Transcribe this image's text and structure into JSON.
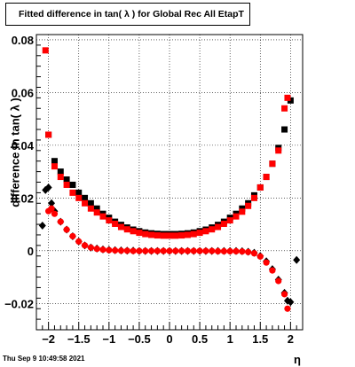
{
  "title": "Fitted difference in tan( λ ) for Global Rec All EtapT",
  "datestamp": "Thu Sep  9 10:49:58 2021",
  "chart_data": {
    "type": "scatter",
    "title": "Fitted difference in tan( λ ) for Global Rec All EtapT",
    "xlabel": "η",
    "ylabel": "difference in tan( λ )",
    "xlim": [
      -2.2,
      2.2
    ],
    "ylim": [
      -0.03,
      0.082
    ],
    "xticks": [
      -2,
      -1.5,
      -1,
      -0.5,
      0,
      0.5,
      1,
      1.5,
      2
    ],
    "xtick_labels": [
      "−2",
      "−1.5",
      "−1",
      "−0.5",
      "0",
      "0.5",
      "1",
      "1.5",
      "2"
    ],
    "yticks": [
      -0.02,
      0,
      0.02,
      0.04,
      0.06,
      0.08
    ],
    "ytick_labels": [
      "−0.02",
      "0",
      "0.02",
      "0.04",
      "0.06",
      "0.08"
    ],
    "grid": true,
    "series": [
      {
        "marker": "square",
        "color": "#000000",
        "x": [
          -2.0,
          -1.9,
          -1.8,
          -1.7,
          -1.6,
          -1.5,
          -1.4,
          -1.3,
          -1.2,
          -1.1,
          -1.0,
          -0.9,
          -0.8,
          -0.7,
          -0.6,
          -0.5,
          -0.4,
          -0.3,
          -0.2,
          -0.1,
          0.0,
          0.1,
          0.2,
          0.3,
          0.4,
          0.5,
          0.6,
          0.7,
          0.8,
          0.9,
          1.0,
          1.1,
          1.2,
          1.3,
          1.4,
          1.5,
          1.6,
          1.7,
          1.8,
          1.9,
          2.0
        ],
        "values": [
          0.044,
          0.034,
          0.03,
          0.027,
          0.025,
          0.022,
          0.02,
          0.018,
          0.016,
          0.014,
          0.0125,
          0.011,
          0.0098,
          0.0088,
          0.008,
          0.0074,
          0.0069,
          0.0066,
          0.0064,
          0.0063,
          0.0063,
          0.0063,
          0.0064,
          0.0066,
          0.0069,
          0.0074,
          0.008,
          0.0088,
          0.0098,
          0.011,
          0.0125,
          0.014,
          0.016,
          0.018,
          0.021,
          0.024,
          0.028,
          0.033,
          0.039,
          0.046,
          0.057
        ]
      },
      {
        "marker": "square",
        "color": "#ff0000",
        "x": [
          -2.05,
          -2.0,
          -1.9,
          -1.8,
          -1.7,
          -1.6,
          -1.5,
          -1.4,
          -1.3,
          -1.2,
          -1.1,
          -1.0,
          -0.9,
          -0.8,
          -0.7,
          -0.6,
          -0.5,
          -0.4,
          -0.3,
          -0.2,
          -0.1,
          0.0,
          0.1,
          0.2,
          0.3,
          0.4,
          0.5,
          0.6,
          0.7,
          0.8,
          0.9,
          1.0,
          1.1,
          1.2,
          1.3,
          1.4,
          1.5,
          1.6,
          1.7,
          1.8,
          1.9,
          1.95
        ],
        "values": [
          0.076,
          0.044,
          0.032,
          0.028,
          0.025,
          0.022,
          0.02,
          0.018,
          0.016,
          0.0145,
          0.013,
          0.0115,
          0.0102,
          0.009,
          0.0081,
          0.0074,
          0.0068,
          0.0063,
          0.006,
          0.0058,
          0.0057,
          0.0057,
          0.0057,
          0.0058,
          0.006,
          0.0063,
          0.0068,
          0.0074,
          0.0081,
          0.009,
          0.0102,
          0.0115,
          0.013,
          0.0148,
          0.017,
          0.02,
          0.024,
          0.028,
          0.033,
          0.038,
          0.054,
          0.058
        ]
      },
      {
        "marker": "diamond",
        "color": "#000000",
        "x": [
          -2.1,
          -2.05,
          -2.0,
          -1.95,
          -1.9,
          -1.8,
          -1.7,
          -1.6,
          -1.5,
          -1.4,
          -1.3,
          -1.2,
          -1.1,
          -1.0,
          -0.9,
          -0.8,
          -0.7,
          -0.6,
          -0.5,
          -0.4,
          -0.3,
          -0.2,
          -0.1,
          0.0,
          0.1,
          0.2,
          0.3,
          0.4,
          0.5,
          0.6,
          0.7,
          0.8,
          0.9,
          1.0,
          1.1,
          1.2,
          1.3,
          1.4,
          1.5,
          1.6,
          1.7,
          1.8,
          1.9,
          1.95,
          2.0,
          2.1
        ],
        "values": [
          0.0095,
          0.023,
          0.024,
          0.018,
          0.015,
          0.011,
          0.008,
          0.0055,
          0.0035,
          0.002,
          0.0012,
          0.0008,
          0.0005,
          0.0003,
          0.0002,
          0.0001,
          0.0,
          0.0,
          -0.0001,
          -0.0001,
          -0.0001,
          -0.0001,
          -0.0001,
          -0.0001,
          -0.0001,
          -0.0001,
          -0.0001,
          -0.0001,
          -0.0001,
          -0.0001,
          -0.0001,
          -0.0001,
          -0.0001,
          -0.0001,
          -0.0001,
          -0.0002,
          -0.0004,
          -0.0008,
          -0.002,
          -0.004,
          -0.007,
          -0.011,
          -0.016,
          -0.019,
          -0.0195,
          -0.0035
        ]
      },
      {
        "marker": "circle",
        "color": "#ff0000",
        "x": [
          -2.0,
          -1.95,
          -1.9,
          -1.8,
          -1.7,
          -1.6,
          -1.5,
          -1.4,
          -1.3,
          -1.2,
          -1.1,
          -1.0,
          -0.9,
          -0.8,
          -0.7,
          -0.6,
          -0.5,
          -0.4,
          -0.3,
          -0.2,
          -0.1,
          0.0,
          0.1,
          0.2,
          0.3,
          0.4,
          0.5,
          0.6,
          0.7,
          0.8,
          0.9,
          1.0,
          1.1,
          1.2,
          1.3,
          1.4,
          1.5,
          1.6,
          1.7,
          1.8,
          1.9,
          1.95
        ],
        "values": [
          0.015,
          0.016,
          0.014,
          0.011,
          0.008,
          0.0055,
          0.0035,
          0.002,
          0.0012,
          0.0007,
          0.0004,
          0.0002,
          0.0001,
          0.0,
          0.0,
          -0.0001,
          -0.0001,
          -0.0001,
          -0.0001,
          -0.0001,
          -0.0001,
          -0.0001,
          -0.0001,
          -0.0001,
          -0.0001,
          -0.0001,
          -0.0001,
          -0.0001,
          -0.0001,
          -0.0002,
          -0.0002,
          -0.0002,
          -0.0002,
          -0.0003,
          -0.0005,
          -0.001,
          -0.0022,
          -0.0045,
          -0.0075,
          -0.0115,
          -0.0165,
          -0.022
        ]
      }
    ]
  }
}
